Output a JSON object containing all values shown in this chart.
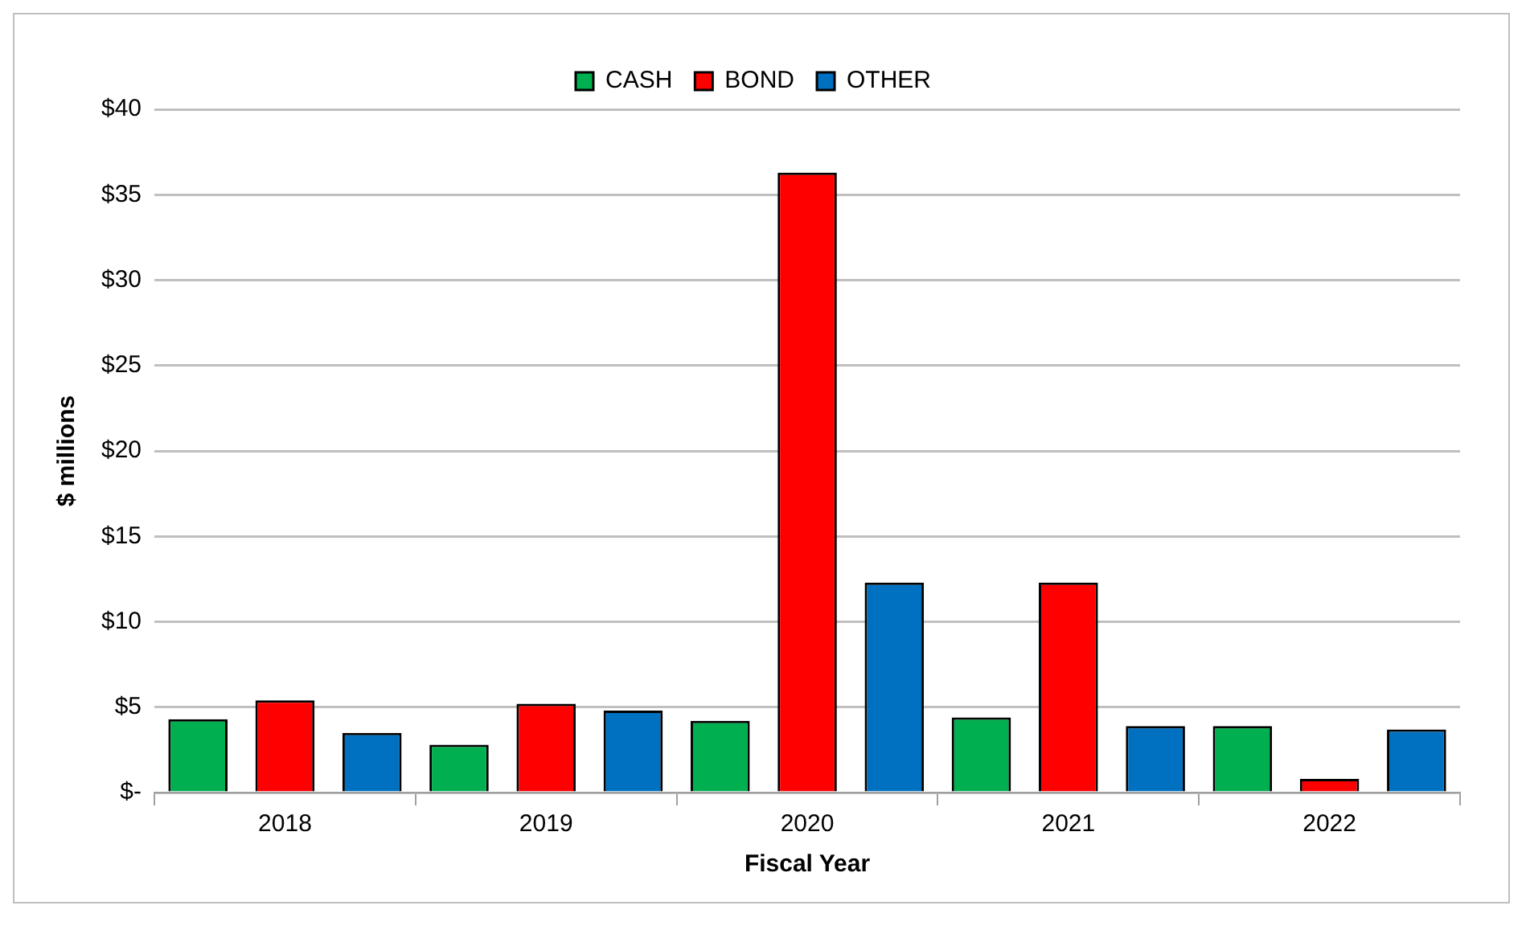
{
  "chart_data": {
    "type": "bar",
    "xlabel": "Fiscal Year",
    "ylabel": "$ millions",
    "categories": [
      "2018",
      "2019",
      "2020",
      "2021",
      "2022"
    ],
    "series": [
      {
        "name": "CASH",
        "color": "#00b050",
        "values": [
          4.3,
          2.8,
          4.2,
          4.4,
          3.9
        ]
      },
      {
        "name": "BOND",
        "color": "#ff0000",
        "values": [
          5.4,
          5.2,
          36.3,
          12.3,
          0.8
        ]
      },
      {
        "name": "OTHER",
        "color": "#0070c0",
        "values": [
          3.5,
          4.8,
          12.3,
          3.9,
          3.7
        ]
      }
    ],
    "ylim": [
      0,
      40
    ],
    "yticks": [
      {
        "value": 0,
        "label": "$-"
      },
      {
        "value": 5,
        "label": "$5"
      },
      {
        "value": 10,
        "label": "$10"
      },
      {
        "value": 15,
        "label": "$15"
      },
      {
        "value": 20,
        "label": "$20"
      },
      {
        "value": 25,
        "label": "$25"
      },
      {
        "value": 30,
        "label": "$30"
      },
      {
        "value": 35,
        "label": "$35"
      },
      {
        "value": 40,
        "label": "$40"
      }
    ],
    "grid": "y",
    "legend": "top"
  }
}
